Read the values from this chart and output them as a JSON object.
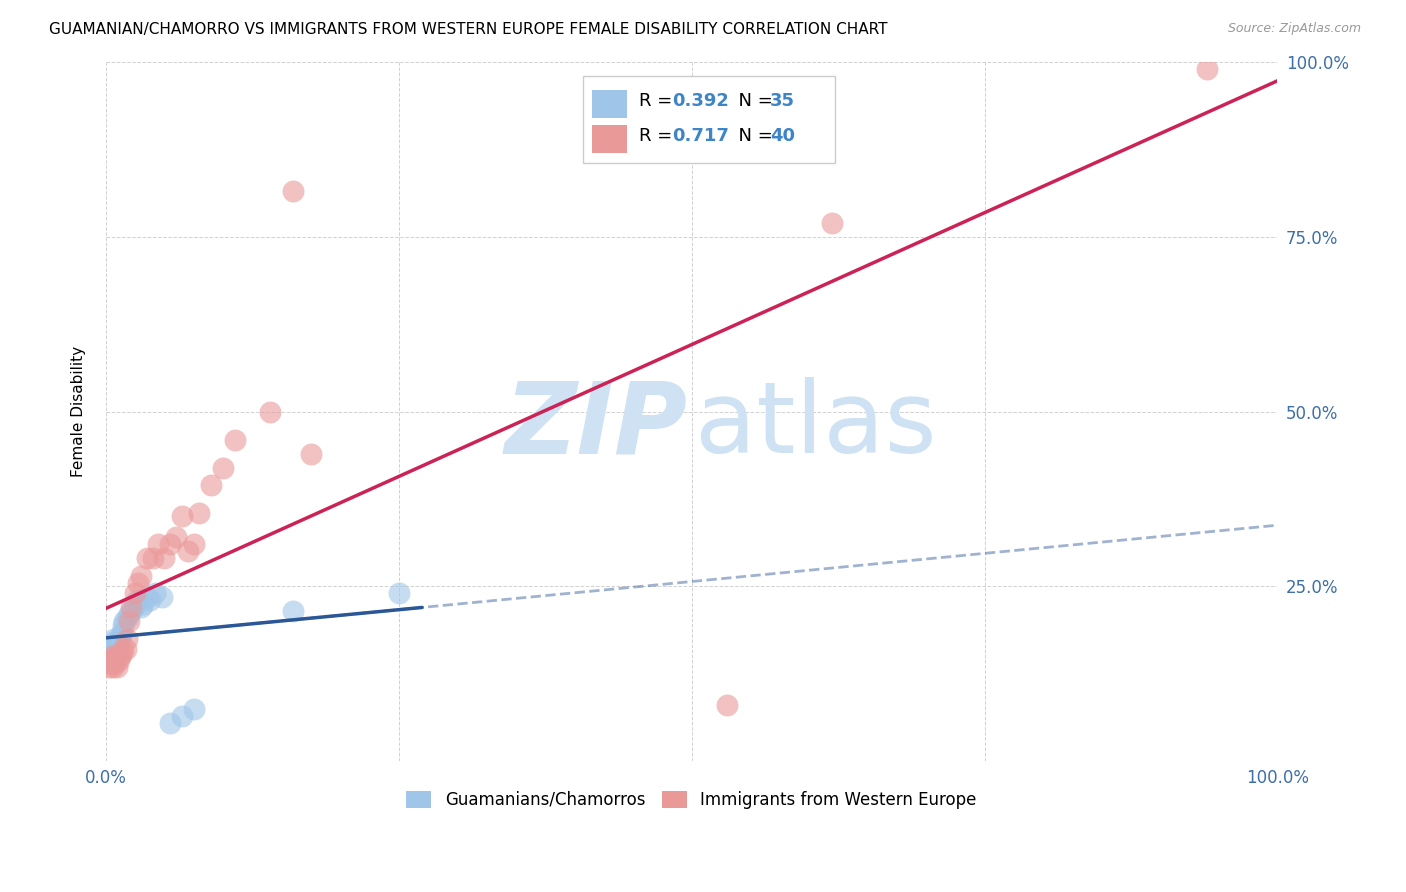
{
  "title": "GUAMANIAN/CHAMORRO VS IMMIGRANTS FROM WESTERN EUROPE FEMALE DISABILITY CORRELATION CHART",
  "source": "Source: ZipAtlas.com",
  "ylabel": "Female Disability",
  "xlim": [
    0,
    1
  ],
  "ylim": [
    0,
    1
  ],
  "xtick_positions": [
    0.0,
    0.25,
    0.5,
    0.75,
    1.0
  ],
  "xtick_labels": [
    "0.0%",
    "",
    "",
    "",
    "100.0%"
  ],
  "ytick_positions": [
    0.0,
    0.25,
    0.5,
    0.75,
    1.0
  ],
  "ytick_labels_right": [
    "",
    "25.0%",
    "50.0%",
    "75.0%",
    "100.0%"
  ],
  "legend1_label": "Guamanians/Chamorros",
  "legend2_label": "Immigrants from Western Europe",
  "R1": 0.392,
  "N1": 35,
  "R2": 0.717,
  "N2": 40,
  "blue_color": "#9fc5e8",
  "pink_color": "#ea9999",
  "blue_line_color": "#2b5797",
  "pink_line_color": "#cc2255",
  "watermark_color": "#cfe2f3",
  "grid_color": "#cccccc",
  "blue_scatter_x": [
    0.002,
    0.003,
    0.004,
    0.005,
    0.005,
    0.006,
    0.006,
    0.007,
    0.007,
    0.008,
    0.009,
    0.01,
    0.011,
    0.012,
    0.013,
    0.014,
    0.015,
    0.016,
    0.018,
    0.02,
    0.022,
    0.024,
    0.025,
    0.027,
    0.03,
    0.032,
    0.035,
    0.038,
    0.042,
    0.048,
    0.055,
    0.065,
    0.075,
    0.16,
    0.25
  ],
  "blue_scatter_y": [
    0.145,
    0.155,
    0.16,
    0.15,
    0.165,
    0.145,
    0.17,
    0.175,
    0.16,
    0.155,
    0.165,
    0.16,
    0.17,
    0.175,
    0.18,
    0.185,
    0.195,
    0.2,
    0.205,
    0.21,
    0.215,
    0.22,
    0.225,
    0.23,
    0.22,
    0.225,
    0.235,
    0.23,
    0.24,
    0.235,
    0.055,
    0.065,
    0.075,
    0.215,
    0.24
  ],
  "pink_scatter_x": [
    0.002,
    0.003,
    0.004,
    0.005,
    0.005,
    0.006,
    0.007,
    0.008,
    0.009,
    0.01,
    0.011,
    0.012,
    0.014,
    0.015,
    0.017,
    0.018,
    0.02,
    0.022,
    0.025,
    0.028,
    0.03,
    0.035,
    0.04,
    0.045,
    0.05,
    0.055,
    0.06,
    0.065,
    0.07,
    0.075,
    0.08,
    0.09,
    0.1,
    0.11,
    0.14,
    0.16,
    0.175,
    0.53,
    0.62,
    0.94
  ],
  "pink_scatter_y": [
    0.14,
    0.135,
    0.145,
    0.14,
    0.15,
    0.135,
    0.145,
    0.14,
    0.15,
    0.135,
    0.145,
    0.15,
    0.155,
    0.16,
    0.16,
    0.175,
    0.2,
    0.22,
    0.24,
    0.255,
    0.265,
    0.29,
    0.29,
    0.31,
    0.29,
    0.31,
    0.32,
    0.35,
    0.3,
    0.31,
    0.355,
    0.395,
    0.42,
    0.46,
    0.5,
    0.815,
    0.44,
    0.08,
    0.77,
    0.99
  ],
  "title_fontsize": 11,
  "source_fontsize": 9,
  "tick_fontsize": 12,
  "ylabel_fontsize": 11
}
